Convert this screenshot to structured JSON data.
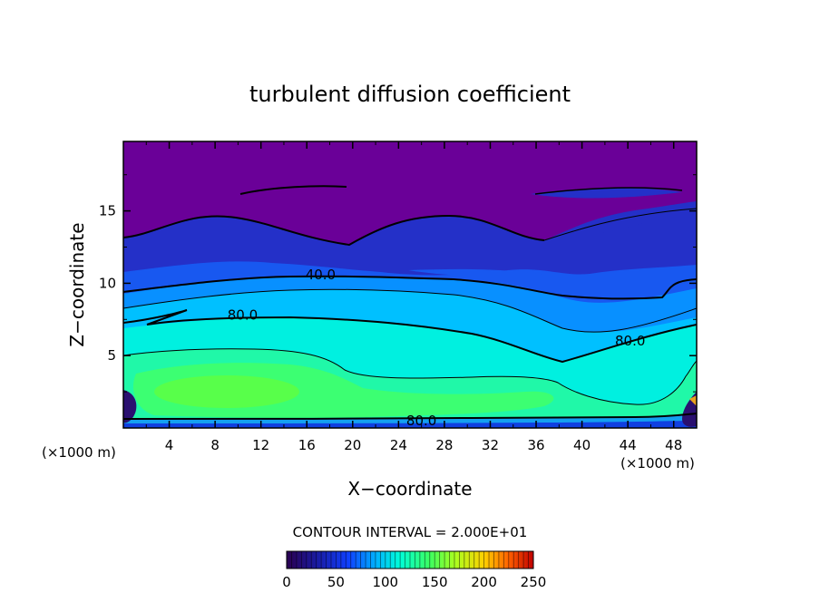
{
  "chart_data": {
    "type": "heatmap",
    "title": "turbulent diffusion coefficient",
    "xlabel": "X−coordinate",
    "ylabel": "Z−coordinate",
    "x_unit_left": "(×1000 m)",
    "x_unit_right": "(×1000 m)",
    "xlim": [
      0,
      50
    ],
    "ylim": [
      0,
      19.8
    ],
    "x_ticks": [
      4,
      8,
      12,
      16,
      20,
      24,
      28,
      32,
      36,
      40,
      44,
      48
    ],
    "y_ticks": [
      5,
      10,
      15
    ],
    "contour_interval_text": "CONTOUR INTERVAL = 2.000E+01",
    "colorbar": {
      "min": 0,
      "max": 250,
      "ticks": [
        0,
        50,
        100,
        150,
        200,
        250
      ],
      "colors": [
        "#2a0050",
        "#1a1aa0",
        "#1040ff",
        "#00b0ff",
        "#00ffd8",
        "#3cff60",
        "#a8ff20",
        "#ffd000",
        "#ff6000",
        "#c00000"
      ]
    },
    "contour_labels": [
      {
        "text": "40.0",
        "x": 17.2,
        "y": 10.6
      },
      {
        "text": "80.0",
        "x": 10.4,
        "y": 7.8
      },
      {
        "text": "80.0",
        "x": 44.2,
        "y": 6.0
      },
      {
        "text": "80.0",
        "x": 26.0,
        "y": 0.5
      }
    ],
    "field_bands_top_to_bottom": [
      {
        "z_range": [
          14.5,
          19.8
        ],
        "value": 5
      },
      {
        "z_range": [
          11.0,
          14.5
        ],
        "value": 25
      },
      {
        "z_range": [
          9.5,
          11.0
        ],
        "value": 40
      },
      {
        "z_range": [
          7.5,
          9.5
        ],
        "value": 70
      },
      {
        "z_range": [
          5.0,
          7.5
        ],
        "value": 95
      },
      {
        "z_range": [
          1.0,
          5.0
        ],
        "value": 115
      },
      {
        "z_range": [
          0.0,
          1.0
        ],
        "value": 75
      }
    ]
  }
}
